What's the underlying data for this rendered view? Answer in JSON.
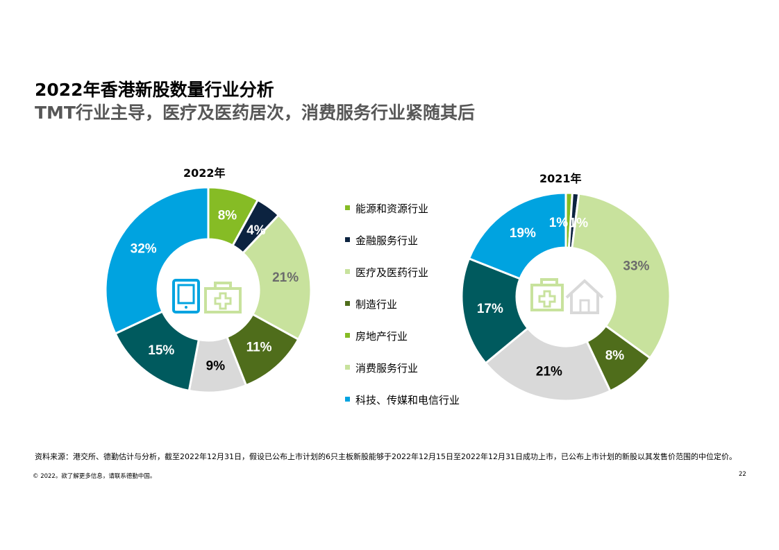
{
  "page": {
    "title": "2022年香港新股数量行业分析",
    "subtitle": "TMT行业主导，医疗及医药居次，消费服务行业紧随其后",
    "source_note": "资料来源：港交所、德勤估计与分析，截至2022年12月31日，假设已公布上市计划的6只主板新股能够于2022年12月15日至2022年12月31日成功上市，已公布上市计划的新股以其发售价范围的中位定价。",
    "copyright": "© 2022。欲了解更多信息，请联系德勤中国。",
    "page_number": "22"
  },
  "icons": {
    "center_2022": [
      "tablet-icon",
      "medical-kit-icon"
    ],
    "center_2021": [
      "medical-kit-icon",
      "house-icon"
    ]
  },
  "colors": {
    "能源和资源行业": "#86bc25",
    "金融服务行业": "#0c2340",
    "医疗及医药行业": "#c8e29d",
    "制造行业": "#4f6d1b",
    "房地产行业": "#d9d9d9",
    "消费服务行业": "#005a5e",
    "科技、传媒和电信行业": "#00a3e0",
    "legend_swatch_房地产行业": "#86bc25",
    "legend_swatch_消费服务行业": "#c8e29d"
  },
  "chart_data": [
    {
      "type": "pie",
      "title": "2022年",
      "labels": [
        "能源和资源行业",
        "金融服务行业",
        "医疗及医药行业",
        "制造行业",
        "房地产行业",
        "消费服务行业",
        "科技、传媒和电信行业"
      ],
      "values": [
        8,
        4,
        21,
        11,
        9,
        15,
        32
      ],
      "value_labels": [
        "8%",
        "4%",
        "21%",
        "11%",
        "9%",
        "15%",
        "32%"
      ],
      "legend_position": "right"
    },
    {
      "type": "pie",
      "title": "2021年",
      "labels": [
        "能源和资源行业",
        "金融服务行业",
        "医疗及医药行业",
        "制造行业",
        "房地产行业",
        "消费服务行业",
        "科技、传媒和电信行业"
      ],
      "values": [
        1,
        1,
        33,
        8,
        21,
        17,
        19
      ],
      "value_labels": [
        "1%",
        "1%",
        "33%",
        "8%",
        "21%",
        "17%",
        "19%"
      ],
      "legend_position": "left"
    }
  ],
  "legend": [
    {
      "label": "能源和资源行业",
      "color": "#86bc25"
    },
    {
      "label": "金融服务行业",
      "color": "#0c2340"
    },
    {
      "label": "医疗及医药行业",
      "color": "#c8e29d"
    },
    {
      "label": "制造行业",
      "color": "#4f6d1b"
    },
    {
      "label": "房地产行业",
      "color": "#86bc25"
    },
    {
      "label": "消费服务行业",
      "color": "#c8e29d"
    },
    {
      "label": "科技、传媒和电信行业",
      "color": "#00a3e0"
    }
  ]
}
